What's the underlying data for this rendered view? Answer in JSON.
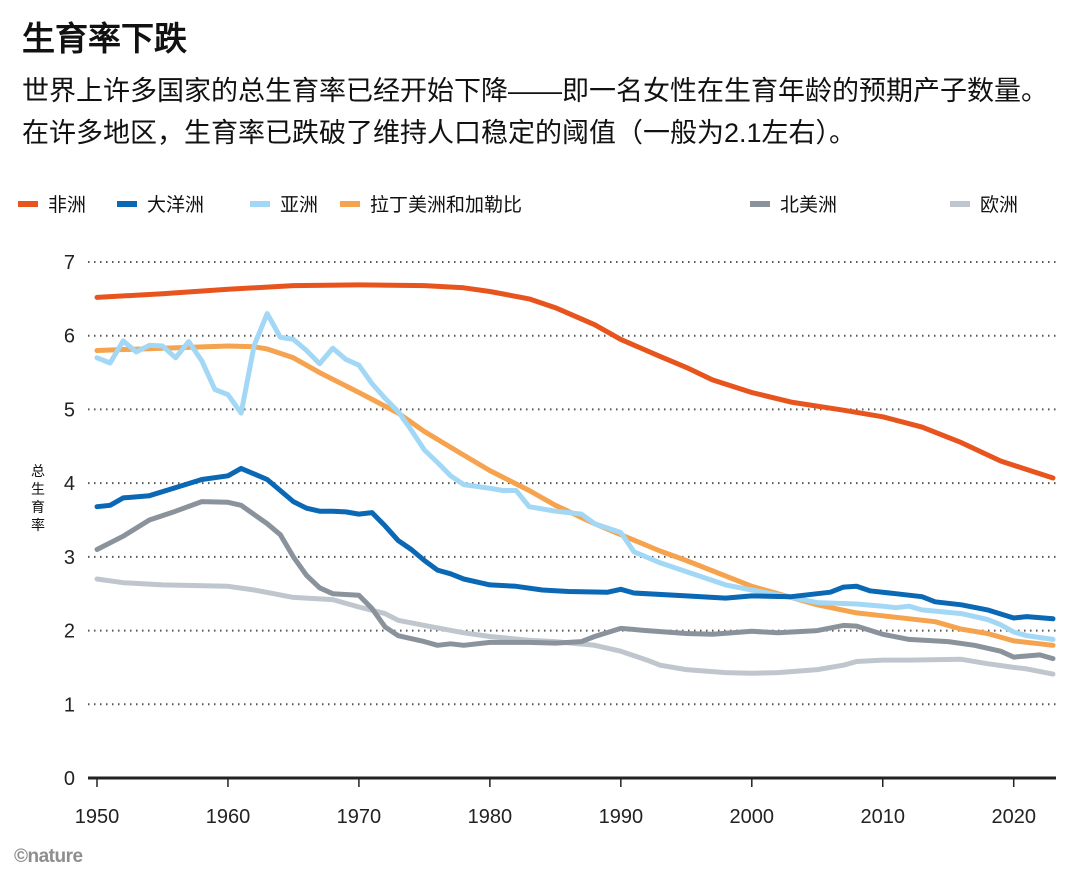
{
  "title": "生育率下跌",
  "subtitle": "世界上许多国家的总生育率已经开始下降——即一名女性在生育年龄的预期产子数量。在许多地区，生育率已跌破了维持人口稳定的阈值（一般为2.1左右）。",
  "logo": "©nature",
  "chart_data": {
    "type": "line",
    "title": "生育率下跌",
    "xlabel": "",
    "ylabel": "总生育率",
    "xlim": [
      1950,
      2023
    ],
    "ylim": [
      0,
      7
    ],
    "xticks": [
      1950,
      1960,
      1970,
      1980,
      1990,
      2000,
      2010,
      2020
    ],
    "yticks": [
      0,
      1,
      2,
      3,
      4,
      5,
      6,
      7
    ],
    "grid": "horizontal dotted",
    "legend": "top",
    "series": [
      {
        "name": "非洲",
        "color": "#e8541e",
        "x": [
          1950,
          1955,
          1960,
          1965,
          1970,
          1975,
          1978,
          1980,
          1983,
          1985,
          1988,
          1990,
          1993,
          1995,
          1997,
          2000,
          2003,
          2007,
          2010,
          2013,
          2016,
          2019,
          2023
        ],
        "y": [
          6.52,
          6.57,
          6.63,
          6.68,
          6.69,
          6.68,
          6.65,
          6.6,
          6.5,
          6.38,
          6.15,
          5.95,
          5.72,
          5.57,
          5.4,
          5.23,
          5.1,
          4.99,
          4.9,
          4.76,
          4.55,
          4.3,
          4.07
        ]
      },
      {
        "name": "大洋洲",
        "color": "#0a68b4",
        "x": [
          1950,
          1951,
          1952,
          1954,
          1956,
          1958,
          1960,
          1961,
          1963,
          1965,
          1966,
          1967,
          1968,
          1969,
          1970,
          1971,
          1972,
          1973,
          1974,
          1975,
          1976,
          1977,
          1978,
          1980,
          1982,
          1984,
          1986,
          1989,
          1990,
          1991,
          1995,
          1998,
          2000,
          2003,
          2005,
          2006,
          2007,
          2008,
          2009,
          2011,
          2013,
          2014,
          2016,
          2018,
          2020,
          2021,
          2023
        ],
        "y": [
          3.68,
          3.7,
          3.8,
          3.83,
          3.94,
          4.05,
          4.1,
          4.2,
          4.05,
          3.75,
          3.66,
          3.62,
          3.62,
          3.61,
          3.58,
          3.6,
          3.42,
          3.22,
          3.1,
          2.95,
          2.82,
          2.77,
          2.7,
          2.62,
          2.6,
          2.55,
          2.53,
          2.52,
          2.56,
          2.51,
          2.47,
          2.44,
          2.47,
          2.46,
          2.5,
          2.52,
          2.59,
          2.6,
          2.54,
          2.5,
          2.46,
          2.39,
          2.35,
          2.28,
          2.17,
          2.19,
          2.16
        ]
      },
      {
        "name": "亚洲",
        "color": "#a2d8f6",
        "x": [
          1950,
          1951,
          1952,
          1953,
          1954,
          1955,
          1956,
          1957,
          1958,
          1959,
          1960,
          1961,
          1962,
          1963,
          1964,
          1965,
          1966,
          1967,
          1968,
          1969,
          1970,
          1971,
          1972,
          1973,
          1974,
          1975,
          1976,
          1977,
          1978,
          1980,
          1981,
          1982,
          1983,
          1985,
          1987,
          1988,
          1990,
          1991,
          1993,
          1995,
          1998,
          2000,
          2003,
          2005,
          2008,
          2010,
          2011,
          2012,
          2013,
          2016,
          2018,
          2019,
          2020,
          2021,
          2023
        ],
        "y": [
          5.7,
          5.63,
          5.93,
          5.78,
          5.87,
          5.86,
          5.7,
          5.92,
          5.66,
          5.27,
          5.2,
          4.95,
          5.87,
          6.3,
          5.98,
          5.95,
          5.8,
          5.62,
          5.83,
          5.68,
          5.6,
          5.35,
          5.15,
          4.97,
          4.72,
          4.45,
          4.28,
          4.1,
          3.98,
          3.93,
          3.9,
          3.9,
          3.68,
          3.62,
          3.58,
          3.45,
          3.33,
          3.07,
          2.92,
          2.8,
          2.62,
          2.55,
          2.45,
          2.38,
          2.36,
          2.33,
          2.31,
          2.33,
          2.28,
          2.23,
          2.15,
          2.08,
          1.98,
          1.93,
          1.88
        ]
      },
      {
        "name": "拉丁美洲和加勒比",
        "color": "#f5a34e",
        "x": [
          1950,
          1955,
          1960,
          1962,
          1963,
          1965,
          1967,
          1970,
          1973,
          1975,
          1978,
          1980,
          1983,
          1985,
          1988,
          1990,
          1993,
          1995,
          2000,
          2005,
          2008,
          2010,
          2014,
          2016,
          2018,
          2020,
          2023
        ],
        "y": [
          5.8,
          5.83,
          5.86,
          5.85,
          5.82,
          5.7,
          5.5,
          5.23,
          4.95,
          4.7,
          4.38,
          4.17,
          3.9,
          3.7,
          3.45,
          3.3,
          3.08,
          2.95,
          2.6,
          2.35,
          2.24,
          2.2,
          2.12,
          2.02,
          1.96,
          1.86,
          1.8
        ]
      },
      {
        "name": "北美洲",
        "color": "#8a939c",
        "x": [
          1950,
          1952,
          1954,
          1956,
          1958,
          1960,
          1961,
          1963,
          1964,
          1965,
          1966,
          1967,
          1968,
          1970,
          1971,
          1972,
          1973,
          1975,
          1976,
          1977,
          1978,
          1980,
          1983,
          1985,
          1987,
          1988,
          1990,
          1992,
          1995,
          1997,
          2000,
          2002,
          2005,
          2007,
          2008,
          2010,
          2012,
          2015,
          2017,
          2019,
          2020,
          2022,
          2023
        ],
        "y": [
          3.1,
          3.28,
          3.5,
          3.62,
          3.75,
          3.74,
          3.7,
          3.45,
          3.3,
          3.0,
          2.75,
          2.58,
          2.5,
          2.48,
          2.3,
          2.05,
          1.93,
          1.85,
          1.8,
          1.82,
          1.8,
          1.84,
          1.84,
          1.83,
          1.85,
          1.92,
          2.03,
          2.0,
          1.96,
          1.95,
          1.99,
          1.97,
          2.0,
          2.07,
          2.06,
          1.95,
          1.88,
          1.85,
          1.8,
          1.72,
          1.64,
          1.67,
          1.62
        ]
      },
      {
        "name": "欧洲",
        "color": "#c0c6cd",
        "x": [
          1950,
          1952,
          1955,
          1960,
          1962,
          1965,
          1968,
          1970,
          1972,
          1973,
          1975,
          1978,
          1980,
          1983,
          1985,
          1988,
          1990,
          1992,
          1993,
          1995,
          1998,
          2000,
          2002,
          2005,
          2007,
          2008,
          2010,
          2012,
          2016,
          2018,
          2020,
          2021,
          2023
        ],
        "y": [
          2.7,
          2.65,
          2.62,
          2.6,
          2.55,
          2.45,
          2.42,
          2.32,
          2.23,
          2.14,
          2.07,
          1.97,
          1.92,
          1.87,
          1.85,
          1.8,
          1.72,
          1.6,
          1.53,
          1.47,
          1.43,
          1.42,
          1.43,
          1.47,
          1.53,
          1.58,
          1.6,
          1.6,
          1.61,
          1.55,
          1.5,
          1.48,
          1.41
        ]
      }
    ]
  }
}
